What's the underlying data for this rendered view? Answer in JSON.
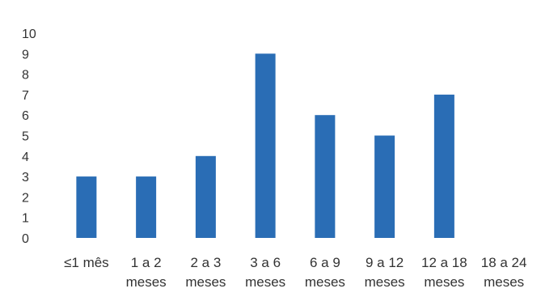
{
  "chart_data": {
    "type": "bar",
    "categories": [
      [
        "≤1 mês"
      ],
      [
        "1 a 2",
        "meses"
      ],
      [
        "2 a 3",
        "meses"
      ],
      [
        "3 a 6",
        "meses"
      ],
      [
        "6 a 9",
        "meses"
      ],
      [
        "9 a 12",
        "meses"
      ],
      [
        "12 a 18",
        "meses"
      ],
      [
        "18 a 24",
        "meses"
      ]
    ],
    "values": [
      3,
      3,
      4,
      9,
      6,
      5,
      7,
      0
    ],
    "ylim": [
      0,
      10
    ],
    "yticks": [
      0,
      1,
      2,
      3,
      4,
      5,
      6,
      7,
      8,
      9,
      10
    ],
    "grid": false,
    "colors": {
      "bar": "#2a6db5"
    }
  }
}
